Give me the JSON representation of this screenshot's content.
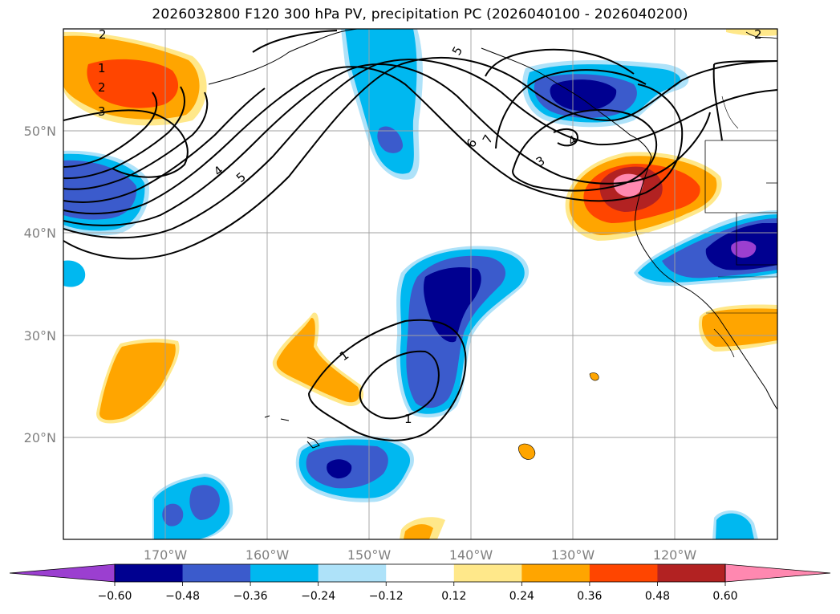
{
  "title": "2026032800 F120 300 hPa PV, precipitation PC (2026040100 - 2026040200)",
  "lon_ticks": [
    "170°W",
    "160°W",
    "150°W",
    "140°W",
    "130°W",
    "120°W"
  ],
  "lat_ticks": [
    "50°N",
    "40°N",
    "30°N",
    "20°N"
  ],
  "colorbar": {
    "tick_labels": [
      "−0.60",
      "−0.48",
      "−0.36",
      "−0.24",
      "−0.12",
      "0.12",
      "0.24",
      "0.36",
      "0.48",
      "0.60"
    ],
    "colors": [
      "#9b3fd0",
      "#000090",
      "#3b5bcc",
      "#00b8f0",
      "#aee2f9",
      "#ffffff",
      "#ffe88a",
      "#ffa500",
      "#ff4500",
      "#b22222",
      "#ff88b0"
    ]
  },
  "contour_labels": [
    "1",
    "2",
    "3",
    "4",
    "5",
    "6",
    "7",
    "3",
    "4",
    "5",
    "2",
    "1",
    "1",
    "2",
    "2",
    "5"
  ],
  "colors": {
    "purple": "#9b3fd0",
    "navy": "#000090",
    "royal": "#3b5bcc",
    "sky": "#00b8f0",
    "pale": "#aee2f9",
    "yellow": "#ffe88a",
    "orange": "#ffa500",
    "redorange": "#ff4500",
    "firebrick": "#b22222",
    "pink": "#ff88b0"
  }
}
